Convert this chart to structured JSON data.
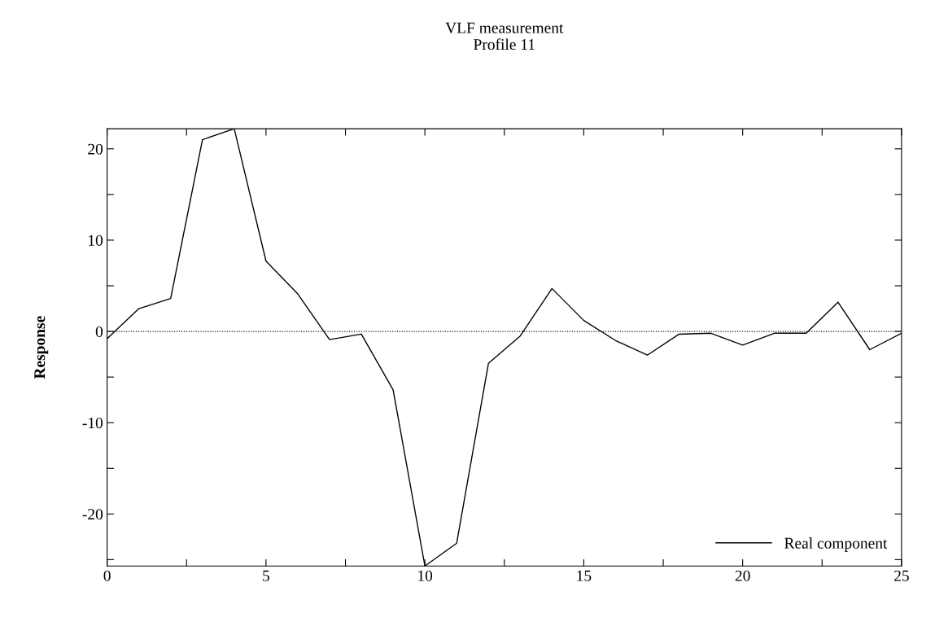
{
  "chart_data": {
    "type": "line",
    "title": "VLF measurement\nProfile 11",
    "ylabel": "Response",
    "x": [
      0,
      1,
      2,
      3,
      4,
      5,
      6,
      7,
      8,
      9,
      10,
      11,
      12,
      13,
      14,
      15,
      16,
      17,
      18,
      19,
      20,
      21,
      22,
      23,
      24,
      25
    ],
    "series": [
      {
        "name": "Real component",
        "color": "#000000",
        "values": [
          -0.8,
          2.5,
          3.6,
          21,
          22.2,
          7.7,
          4.1,
          -0.9,
          -0.3,
          -6.4,
          -25.7,
          -23.2,
          -3.5,
          -0.5,
          4.7,
          1.2,
          -1,
          -2.6,
          -0.3,
          -0.2,
          -1.5,
          -0.2,
          -0.2,
          3.2,
          -2,
          -0.2
        ]
      }
    ],
    "xlim": [
      0,
      25
    ],
    "ylim": [
      -25.7,
      22.2
    ],
    "xticks": [
      0,
      {
        "value": 2.5,
        "label": null
      },
      5,
      {
        "value": 7.5,
        "label": null
      },
      10,
      {
        "value": 12.5,
        "label": null
      },
      15,
      {
        "value": 17.5,
        "label": null
      },
      20,
      {
        "value": 22.5,
        "label": null
      },
      25
    ],
    "yticks": [
      {
        "value": -25,
        "label": null
      },
      -20,
      {
        "value": -15,
        "label": null
      },
      -10,
      {
        "value": -5,
        "label": null
      },
      0,
      {
        "value": 5,
        "label": null
      },
      10,
      {
        "value": 15,
        "label": null
      },
      20
    ],
    "ref_lines": [
      {
        "axis": "y",
        "value": 0,
        "label": null,
        "color": "#000000",
        "line_style": "dotted"
      }
    ],
    "legend": "bottom right",
    "grid": false,
    "marker": "none",
    "line_style": "solid"
  }
}
